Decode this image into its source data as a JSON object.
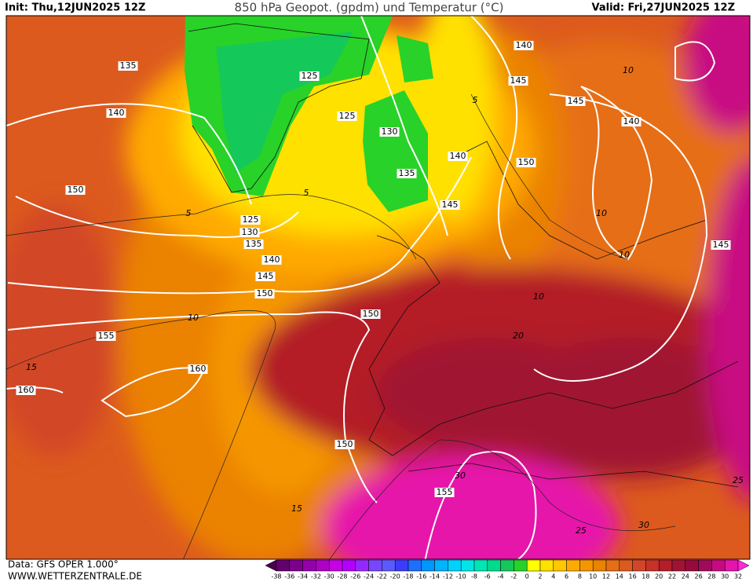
{
  "header": {
    "init": "Init: Thu,12JUN2025 12Z",
    "title": "850 hPa Geopot. (gpdm) und Temperatur (°C)",
    "valid": "Valid: Fri,27JUN2025 12Z"
  },
  "footer": {
    "data_source": "Data: GFS OPER 1.000°",
    "website": "WWW.WETTERZENTRALE.DE"
  },
  "map": {
    "geopotential_labels": [
      135,
      140,
      150,
      125,
      125,
      130,
      135,
      140,
      150,
      145,
      140,
      145,
      145,
      140,
      145,
      125,
      130,
      135,
      140,
      145,
      150,
      150,
      155,
      160,
      160,
      150,
      155
    ],
    "temperature_labels": [
      5,
      5,
      5,
      10,
      10,
      10,
      10,
      10,
      15,
      15,
      20,
      25,
      25,
      30,
      30
    ]
  },
  "color_scale": {
    "labels": [
      -38,
      -36,
      -34,
      -32,
      -30,
      -28,
      -26,
      -24,
      -22,
      -20,
      -18,
      -16,
      -14,
      -12,
      -10,
      -8,
      -6,
      -4,
      -2,
      0,
      2,
      4,
      6,
      8,
      10,
      12,
      14,
      16,
      18,
      20,
      22,
      24,
      26,
      28,
      30,
      32
    ],
    "colors": [
      "#4b0050",
      "#64006e",
      "#7d008c",
      "#9600aa",
      "#af00c8",
      "#c800e6",
      "#b400ff",
      "#9628ff",
      "#7846ff",
      "#5a5aff",
      "#3c3cff",
      "#1e6eff",
      "#0096ff",
      "#00b4ff",
      "#00d2ff",
      "#00e6e6",
      "#00e6b4",
      "#00dc8c",
      "#14c85a",
      "#28d228",
      "#ffff00",
      "#ffe100",
      "#ffc800",
      "#ffaa00",
      "#f59600",
      "#eb8200",
      "#e66e14",
      "#dc5a1e",
      "#d24628",
      "#c83228",
      "#b41e28",
      "#a01432",
      "#960a3c",
      "#a00a5a",
      "#c80a82",
      "#e614aa",
      "#ff28dc"
    ]
  }
}
